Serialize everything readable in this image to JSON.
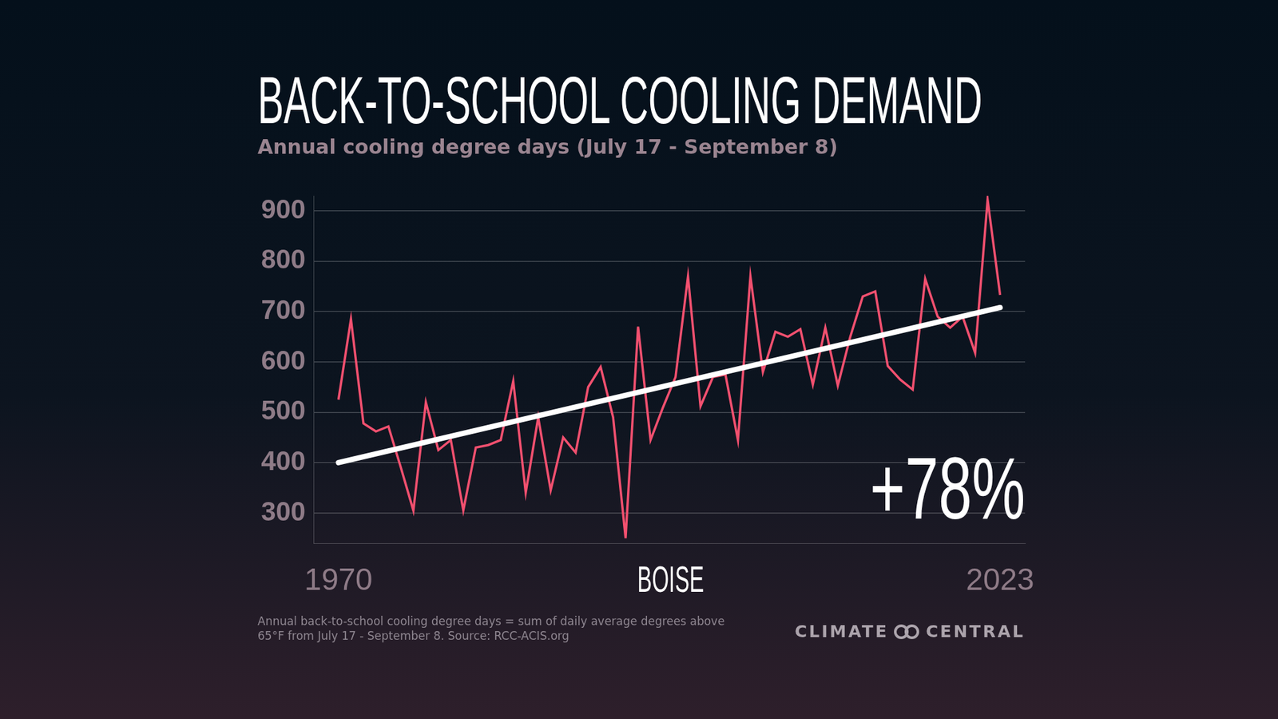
{
  "chart_data": {
    "type": "line",
    "title": "BACK-TO-SCHOOL COOLING DEMAND",
    "subtitle": "Annual cooling degree days (July 17 - September 8)",
    "x": [
      1970,
      1971,
      1972,
      1973,
      1974,
      1975,
      1976,
      1977,
      1978,
      1979,
      1980,
      1981,
      1982,
      1983,
      1984,
      1985,
      1986,
      1987,
      1988,
      1989,
      1990,
      1991,
      1992,
      1993,
      1994,
      1995,
      1996,
      1997,
      1998,
      1999,
      2000,
      2001,
      2002,
      2003,
      2004,
      2005,
      2006,
      2007,
      2008,
      2009,
      2010,
      2011,
      2012,
      2013,
      2014,
      2015,
      2016,
      2017,
      2018,
      2019,
      2020,
      2021,
      2022,
      2023
    ],
    "values": [
      525,
      685,
      478,
      462,
      472,
      390,
      305,
      520,
      425,
      445,
      305,
      430,
      435,
      445,
      562,
      340,
      490,
      345,
      450,
      420,
      550,
      590,
      490,
      250,
      670,
      445,
      510,
      570,
      770,
      512,
      570,
      575,
      445,
      770,
      580,
      660,
      650,
      665,
      555,
      668,
      553,
      650,
      730,
      740,
      592,
      565,
      545,
      765,
      690,
      668,
      690,
      618,
      922,
      733
    ],
    "color": "#f2506f",
    "trend": {
      "x": [
        1970,
        2023
      ],
      "values": [
        400,
        708
      ],
      "color": "#ffffff"
    },
    "xlim": [
      1968,
      2025
    ],
    "xticks": [
      1970,
      2023
    ],
    "ylim": [
      240,
      930
    ],
    "yticks": [
      300,
      400,
      500,
      600,
      700,
      800,
      900
    ],
    "grid": "y",
    "annotation": "+78%",
    "place": "BOISE",
    "footnote": [
      "Annual back-to-school cooling degree days = sum of daily average degrees above",
      "65°F from July 17 - September 8. Source: RCC-ACIS.org"
    ],
    "logo": [
      "CLIMATE",
      "CENTRAL"
    ]
  }
}
